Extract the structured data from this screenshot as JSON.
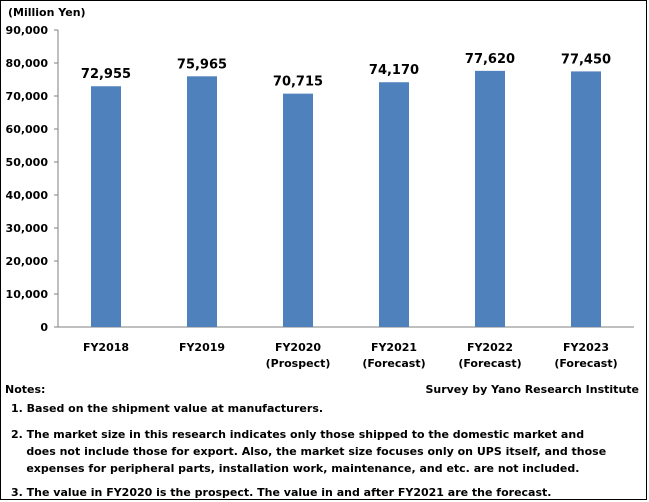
{
  "chart_data": {
    "type": "bar",
    "unit_label": "(Million Yen)",
    "categories": [
      [
        "FY2018"
      ],
      [
        "FY2019"
      ],
      [
        "FY2020",
        "(Prospect)"
      ],
      [
        "FY2021",
        "(Forecast)"
      ],
      [
        "FY2022",
        "(Forecast)"
      ],
      [
        "FY2023",
        "(Forecast)"
      ]
    ],
    "values": [
      72955,
      75965,
      70715,
      74170,
      77620,
      77450
    ],
    "data_labels": [
      "72,955",
      "75,965",
      "70,715",
      "74,170",
      "77,620",
      "77,450"
    ],
    "ylim": [
      0,
      90000
    ],
    "yticks": [
      0,
      10000,
      20000,
      30000,
      40000,
      50000,
      60000,
      70000,
      80000,
      90000
    ],
    "ytick_labels": [
      "0",
      "10,000",
      "20,000",
      "30,000",
      "40,000",
      "50,000",
      "60,000",
      "70,000",
      "80,000",
      "90,000"
    ],
    "bar_color": "#4f81bd",
    "grid": false,
    "legend": "none"
  },
  "footer": {
    "notes_heading": "Notes:",
    "source": "Survey by Yano Research Institute",
    "notes": [
      [
        "1. Based on the shipment value at manufacturers."
      ],
      [
        "2. The market size in this research indicates only those shipped to the domestic market and",
        "    does not include those for export. Also, the market size focuses only on UPS itself, and those",
        "    expenses for peripheral parts, installation work, maintenance, and etc. are not included."
      ],
      [
        "3. The value in FY2020 is the prospect.  The value in and after FY2021 are the forecast."
      ]
    ]
  }
}
